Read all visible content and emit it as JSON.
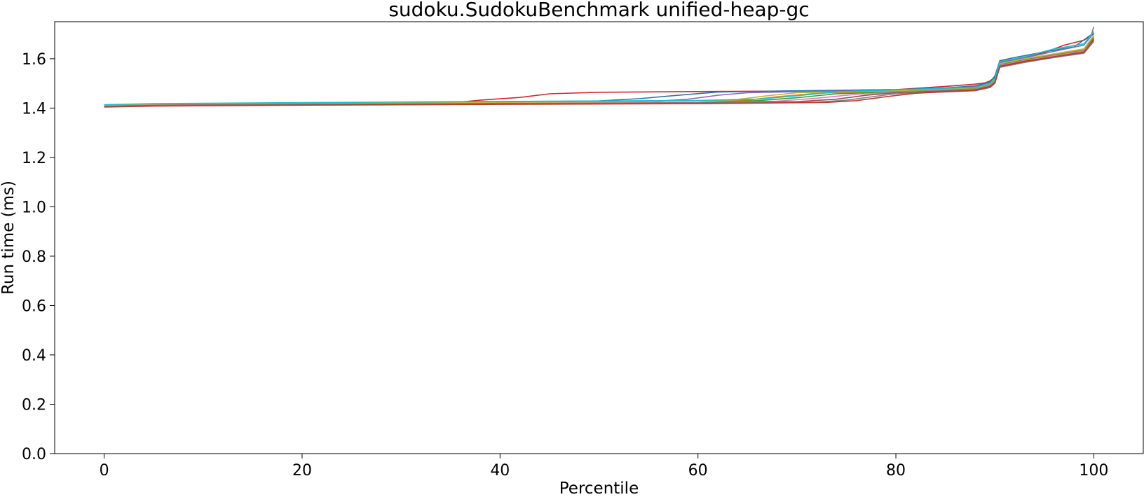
{
  "chart_data": {
    "type": "line",
    "title": "sudoku.SudokuBenchmark unified-heap-gc",
    "xlabel": "Percentile",
    "ylabel": "Run time (ms)",
    "xlim": [
      -5,
      105
    ],
    "ylim": [
      0.0,
      1.75
    ],
    "xticks": [
      {
        "value": 0,
        "label": "0"
      },
      {
        "value": 20,
        "label": "20"
      },
      {
        "value": 40,
        "label": "40"
      },
      {
        "value": 60,
        "label": "60"
      },
      {
        "value": 80,
        "label": "80"
      },
      {
        "value": 100,
        "label": "100"
      }
    ],
    "yticks": [
      {
        "value": 0.0,
        "label": "0.0"
      },
      {
        "value": 0.2,
        "label": "0.2"
      },
      {
        "value": 0.4,
        "label": "0.4"
      },
      {
        "value": 0.6,
        "label": "0.6"
      },
      {
        "value": 0.8,
        "label": "0.8"
      },
      {
        "value": 1.0,
        "label": "1.0"
      },
      {
        "value": 1.2,
        "label": "1.2"
      },
      {
        "value": 1.4,
        "label": "1.4"
      },
      {
        "value": 1.6,
        "label": "1.6"
      }
    ],
    "grid": false,
    "legend": "none",
    "series": [
      {
        "color": "#d62728",
        "x": [
          0,
          5,
          20,
          35,
          38,
          42,
          45,
          50,
          60,
          70,
          80,
          85,
          88,
          89,
          89.5,
          90,
          90.5,
          92,
          95,
          97,
          99,
          100
        ],
        "y": [
          1.41,
          1.414,
          1.418,
          1.421,
          1.432,
          1.443,
          1.458,
          1.464,
          1.467,
          1.469,
          1.475,
          1.488,
          1.497,
          1.502,
          1.51,
          1.525,
          1.585,
          1.598,
          1.625,
          1.655,
          1.675,
          1.7
        ]
      },
      {
        "color": "#1f77b4",
        "x": [
          0,
          5,
          20,
          40,
          50,
          54,
          58,
          62,
          70,
          80,
          85,
          88,
          89.5,
          90,
          90.5,
          92,
          95,
          98,
          100
        ],
        "y": [
          1.412,
          1.416,
          1.42,
          1.424,
          1.429,
          1.438,
          1.452,
          1.465,
          1.47,
          1.475,
          1.482,
          1.49,
          1.505,
          1.53,
          1.592,
          1.605,
          1.628,
          1.648,
          1.705
        ]
      },
      {
        "color": "#9467bd",
        "x": [
          0,
          5,
          20,
          40,
          55,
          59,
          62,
          65,
          70,
          80,
          88,
          89.5,
          90,
          90.5,
          93,
          96,
          99,
          99.7,
          100
        ],
        "y": [
          1.408,
          1.414,
          1.418,
          1.421,
          1.426,
          1.436,
          1.452,
          1.462,
          1.466,
          1.472,
          1.486,
          1.5,
          1.518,
          1.582,
          1.603,
          1.63,
          1.655,
          1.69,
          1.73
        ]
      },
      {
        "color": "#ff7f0e",
        "x": [
          0,
          5,
          20,
          40,
          60,
          65,
          68,
          72,
          80,
          88,
          89.5,
          90,
          90.5,
          93,
          96,
          99,
          100
        ],
        "y": [
          1.41,
          1.414,
          1.418,
          1.421,
          1.424,
          1.432,
          1.446,
          1.46,
          1.468,
          1.48,
          1.495,
          1.512,
          1.578,
          1.598,
          1.618,
          1.638,
          1.69
        ]
      },
      {
        "color": "#2ca02c",
        "x": [
          0,
          5,
          20,
          40,
          60,
          66,
          70,
          74,
          80,
          88,
          89.5,
          90,
          90.5,
          93,
          96,
          99,
          100
        ],
        "y": [
          1.409,
          1.413,
          1.417,
          1.42,
          1.423,
          1.43,
          1.442,
          1.458,
          1.466,
          1.478,
          1.492,
          1.51,
          1.575,
          1.595,
          1.614,
          1.634,
          1.685
        ]
      },
      {
        "color": "#bcbd22",
        "x": [
          0,
          5,
          20,
          40,
          60,
          64,
          67,
          70,
          80,
          88,
          89.5,
          90,
          90.5,
          93,
          96,
          99,
          100
        ],
        "y": [
          1.411,
          1.415,
          1.419,
          1.422,
          1.425,
          1.435,
          1.45,
          1.462,
          1.47,
          1.482,
          1.497,
          1.515,
          1.58,
          1.6,
          1.62,
          1.64,
          1.695
        ]
      },
      {
        "color": "#e377c2",
        "x": [
          0,
          5,
          20,
          40,
          60,
          68,
          72,
          76,
          80,
          88,
          89.5,
          90,
          90.5,
          93,
          96,
          99,
          100
        ],
        "y": [
          1.408,
          1.412,
          1.416,
          1.419,
          1.422,
          1.428,
          1.44,
          1.456,
          1.464,
          1.476,
          1.49,
          1.508,
          1.573,
          1.593,
          1.612,
          1.632,
          1.68
        ]
      },
      {
        "color": "#8c564b",
        "x": [
          0,
          5,
          20,
          40,
          60,
          70,
          74,
          77,
          80,
          88,
          89.5,
          90,
          90.5,
          93,
          96,
          99,
          100
        ],
        "y": [
          1.407,
          1.411,
          1.415,
          1.418,
          1.421,
          1.426,
          1.436,
          1.452,
          1.462,
          1.474,
          1.488,
          1.505,
          1.57,
          1.59,
          1.608,
          1.628,
          1.675
        ]
      },
      {
        "color": "#7f7f7f",
        "x": [
          0,
          5,
          20,
          40,
          60,
          72,
          75,
          78,
          80,
          88,
          89.5,
          90,
          90.5,
          93,
          96,
          99,
          100
        ],
        "y": [
          1.405,
          1.409,
          1.413,
          1.416,
          1.419,
          1.424,
          1.432,
          1.448,
          1.458,
          1.47,
          1.483,
          1.5,
          1.565,
          1.585,
          1.605,
          1.622,
          1.67
        ]
      },
      {
        "color": "#c0392b",
        "x": [
          0,
          5,
          20,
          40,
          60,
          73,
          76,
          79,
          82,
          88,
          89.5,
          90,
          90.5,
          93,
          96,
          99,
          100
        ],
        "y": [
          1.404,
          1.408,
          1.412,
          1.415,
          1.418,
          1.423,
          1.43,
          1.446,
          1.46,
          1.472,
          1.486,
          1.503,
          1.568,
          1.588,
          1.607,
          1.626,
          1.68
        ]
      },
      {
        "color": "#17becf",
        "x": [
          0,
          5,
          20,
          36,
          50,
          60,
          66,
          70,
          74,
          80,
          88,
          89.5,
          90,
          90.5,
          93,
          96,
          99,
          100
        ],
        "y": [
          1.414,
          1.418,
          1.422,
          1.426,
          1.429,
          1.431,
          1.436,
          1.45,
          1.466,
          1.474,
          1.484,
          1.5,
          1.52,
          1.588,
          1.608,
          1.64,
          1.66,
          1.71
        ]
      }
    ]
  }
}
